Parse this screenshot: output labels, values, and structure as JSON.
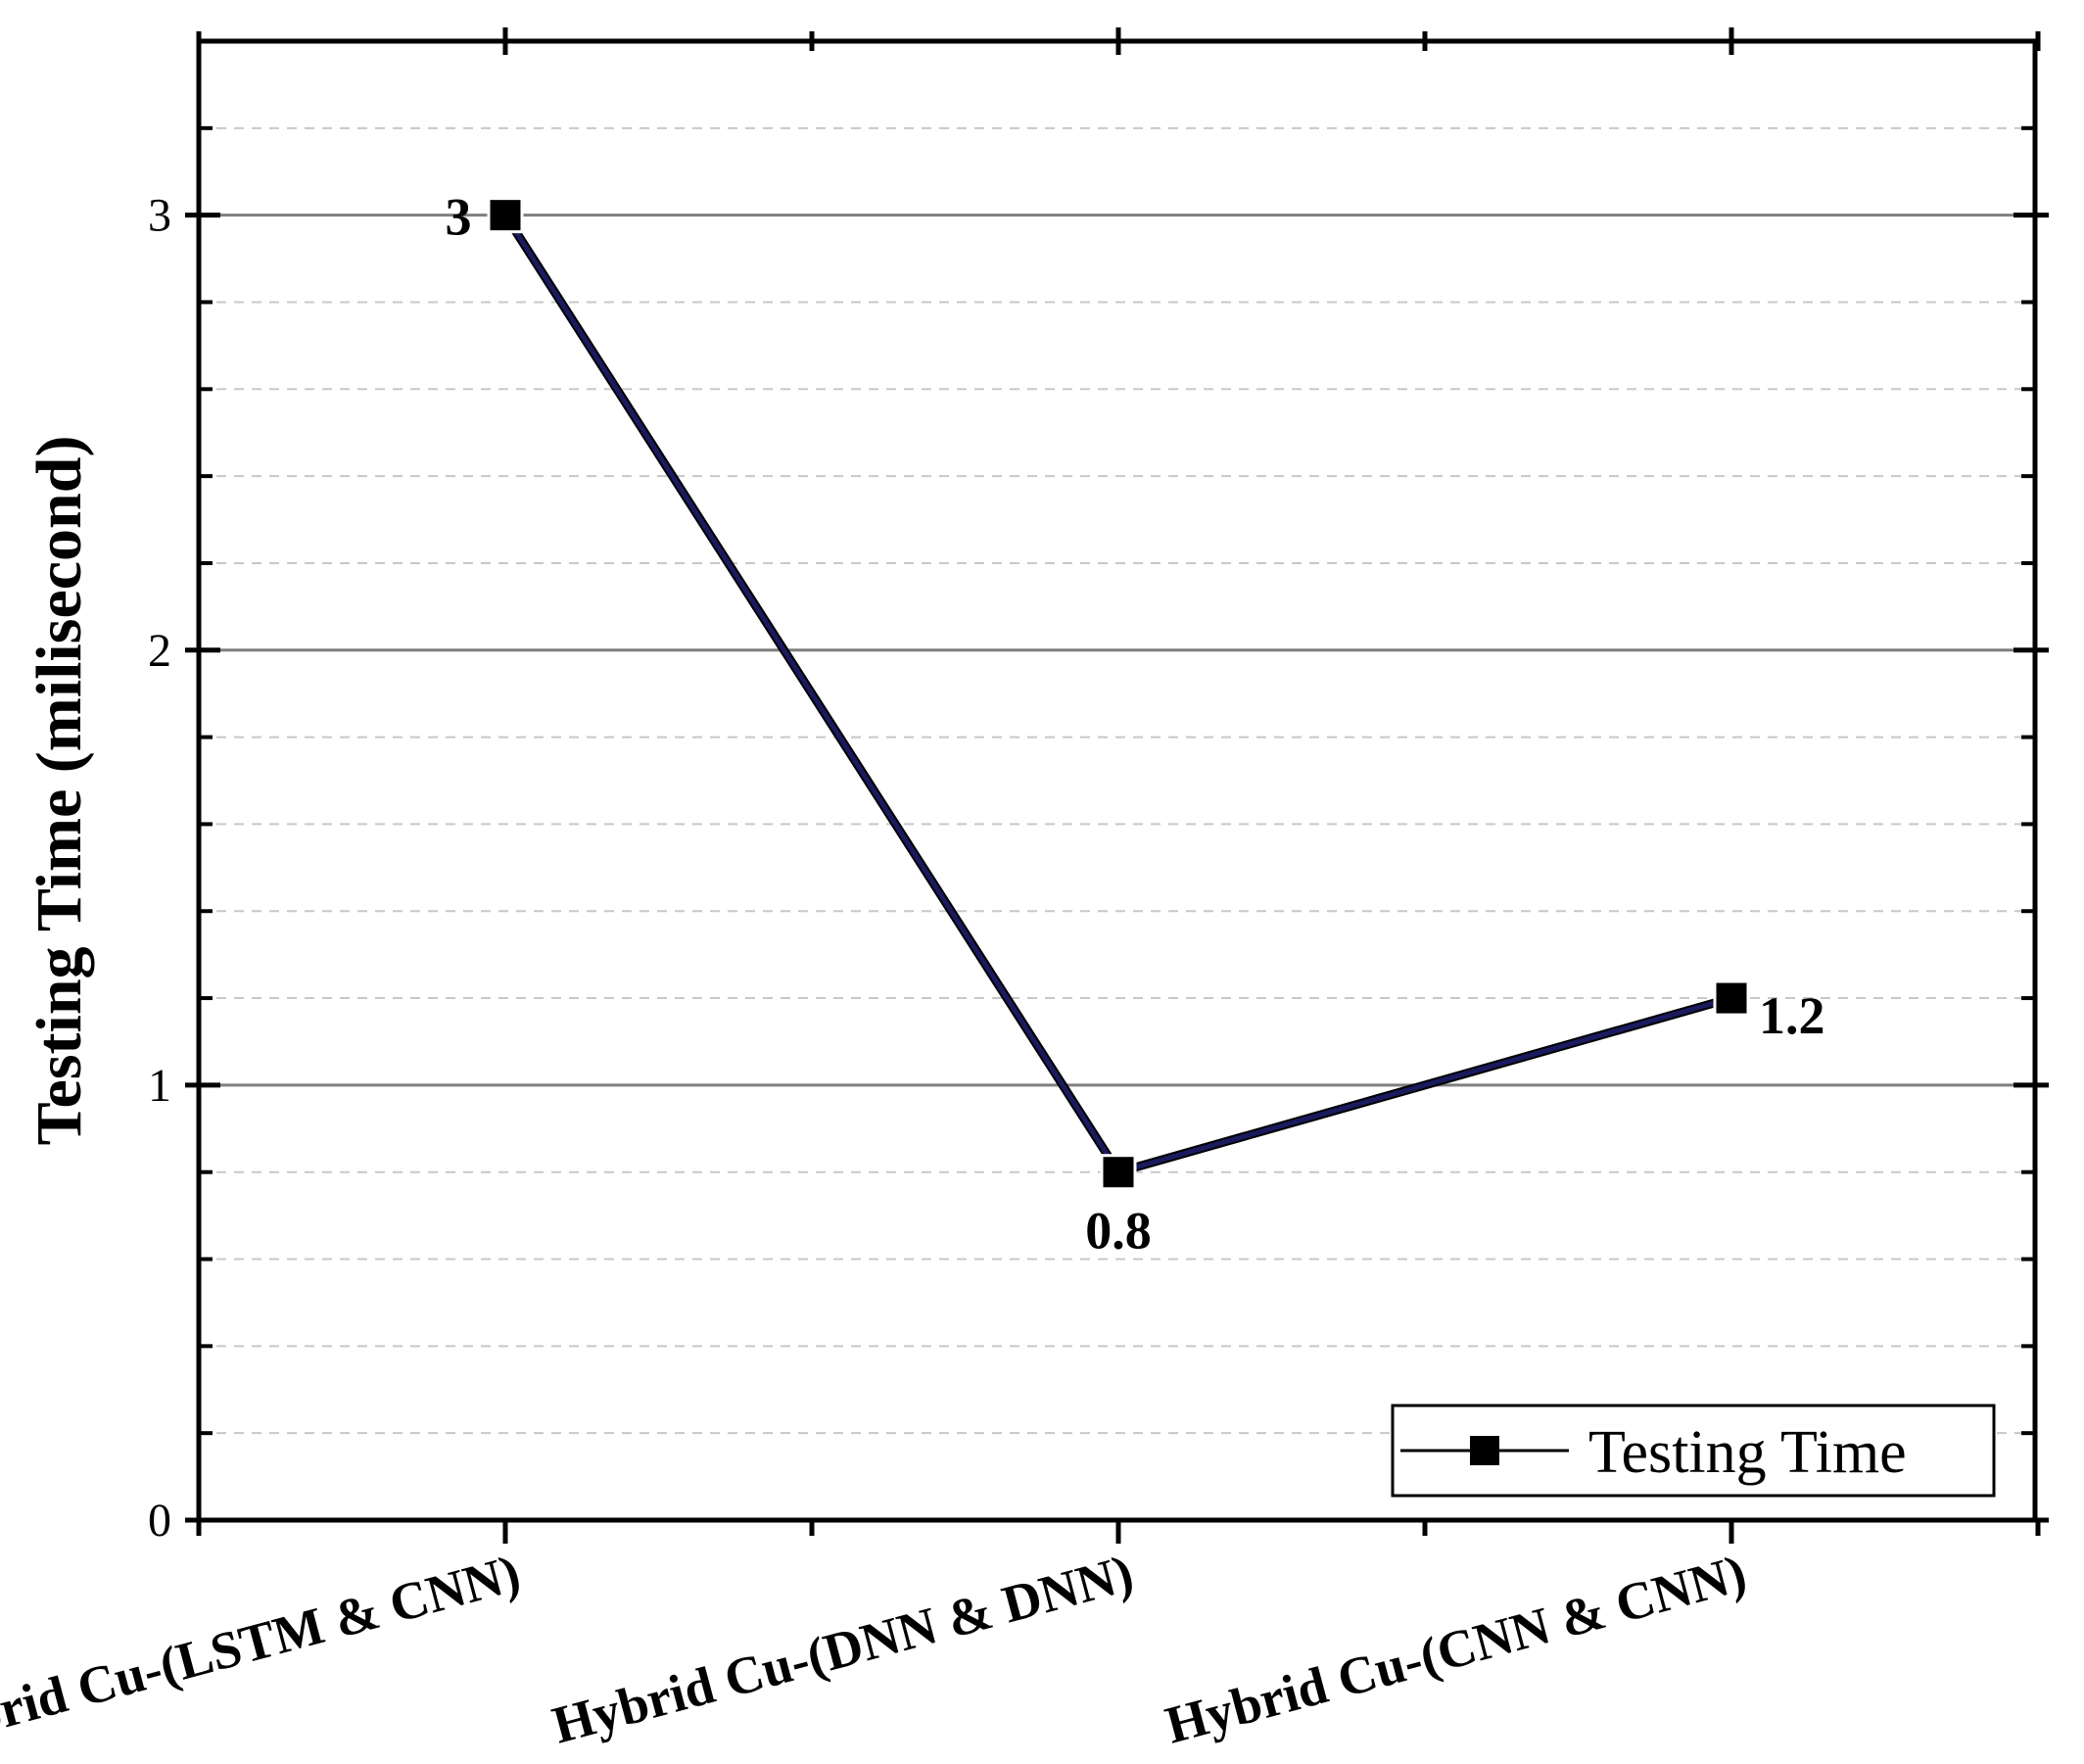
{
  "chart_data": {
    "type": "line",
    "title": "",
    "xlabel": "",
    "ylabel": "Testing Time (milisecond)",
    "categories": [
      "Hybrid Cu-(LSTM & CNN)",
      "Hybrid Cu-(DNN & DNN)",
      "Hybrid Cu-(CNN & CNN)"
    ],
    "series": [
      {
        "name": "Testing Time",
        "values": [
          3,
          0.8,
          1.2
        ],
        "data_labels": [
          "3",
          "0.8",
          "1.2"
        ],
        "color": "#1a1a5e",
        "marker": "square"
      }
    ],
    "ylim": [
      0,
      3.4
    ],
    "yticks": [
      0,
      1,
      2,
      3
    ],
    "ytick_labels": [
      "0",
      "1",
      "2",
      "3"
    ],
    "grid": {
      "major": true,
      "minor": true,
      "major_color": "#7f7f7f",
      "minor_color": "#c8c8c8"
    },
    "legend": {
      "position": "bottom-right",
      "entries": [
        "Testing Time"
      ]
    }
  }
}
